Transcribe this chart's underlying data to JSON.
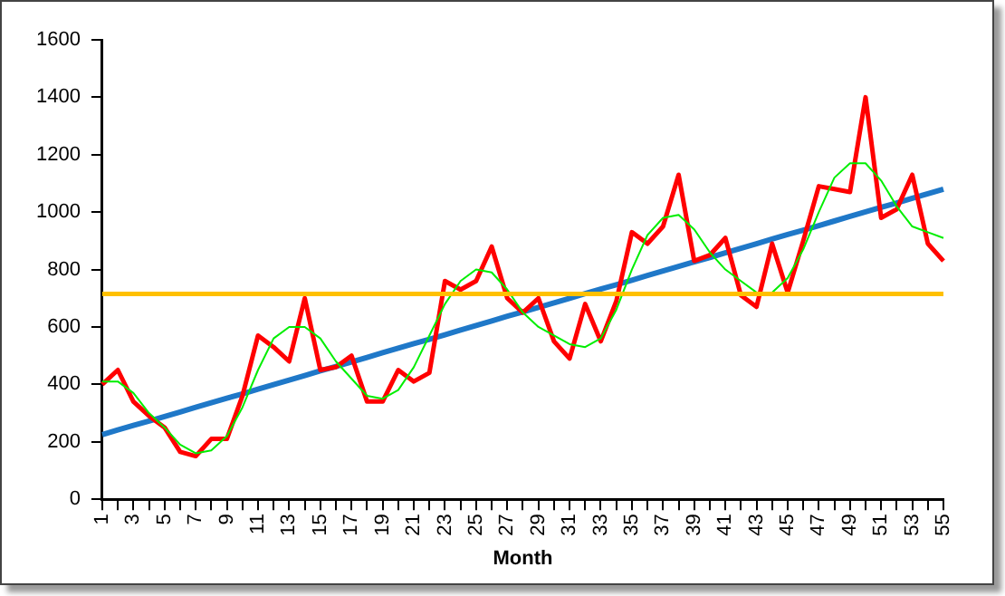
{
  "chart_data": {
    "type": "line",
    "xlabel": "Month",
    "categories": [
      "1",
      null,
      "3",
      null,
      "5",
      null,
      "7",
      null,
      "9",
      null,
      "11",
      null,
      "13",
      null,
      "15",
      null,
      "17",
      null,
      "19",
      null,
      "21",
      null,
      "23",
      null,
      "25",
      null,
      "27",
      null,
      "29",
      null,
      "31",
      null,
      "33",
      null,
      "35",
      null,
      "37",
      null,
      "39",
      null,
      "41",
      null,
      "43",
      null,
      "45",
      null,
      "47",
      null,
      "49",
      null,
      "51",
      null,
      "53",
      null,
      "55"
    ],
    "series": [
      {
        "color": "#00ee00",
        "values": [
          410,
          410,
          370,
          300,
          250,
          190,
          160,
          170,
          220,
          320,
          450,
          560,
          600,
          600,
          560,
          480,
          420,
          360,
          350,
          380,
          460,
          570,
          680,
          760,
          800,
          790,
          730,
          650,
          600,
          570,
          540,
          530,
          560,
          660,
          800,
          920,
          980,
          990,
          940,
          860,
          800,
          760,
          720,
          720,
          770,
          870,
          1000,
          1120,
          1170,
          1170,
          1110,
          1020,
          950,
          930,
          910
        ]
      },
      {
        "color": "#ff0000",
        "values": [
          400,
          450,
          340,
          290,
          250,
          165,
          150,
          210,
          210,
          360,
          570,
          530,
          480,
          700,
          450,
          460,
          500,
          340,
          340,
          450,
          410,
          440,
          760,
          730,
          760,
          880,
          700,
          650,
          700,
          550,
          490,
          680,
          550,
          690,
          930,
          890,
          950,
          1130,
          830,
          850,
          910,
          710,
          670,
          890,
          720,
          900,
          1090,
          1080,
          1070,
          1400,
          980,
          1010,
          1130,
          890,
          830
        ]
      },
      {
        "color": "#1f78c8",
        "values": [
          225,
          241,
          257,
          272,
          288,
          304,
          320,
          336,
          352,
          367,
          383,
          399,
          415,
          431,
          447,
          462,
          478,
          494,
          510,
          526,
          542,
          557,
          573,
          589,
          605,
          621,
          637,
          652,
          668,
          684,
          700,
          716,
          732,
          747,
          763,
          779,
          795,
          811,
          827,
          842,
          858,
          874,
          890,
          906,
          922,
          937,
          953,
          969,
          985,
          1001,
          1017,
          1032,
          1048,
          1064,
          1080
        ]
      }
    ],
    "ref_lines": [
      {
        "axis": "y",
        "value": 715,
        "color": "#ffc000"
      }
    ],
    "ylim": [
      0,
      1600
    ],
    "yticks": [
      0,
      200,
      400,
      600,
      800,
      1000,
      1200,
      1400,
      1600
    ],
    "grid": false,
    "legend": false,
    "marker": "none",
    "line_style": "solid"
  }
}
